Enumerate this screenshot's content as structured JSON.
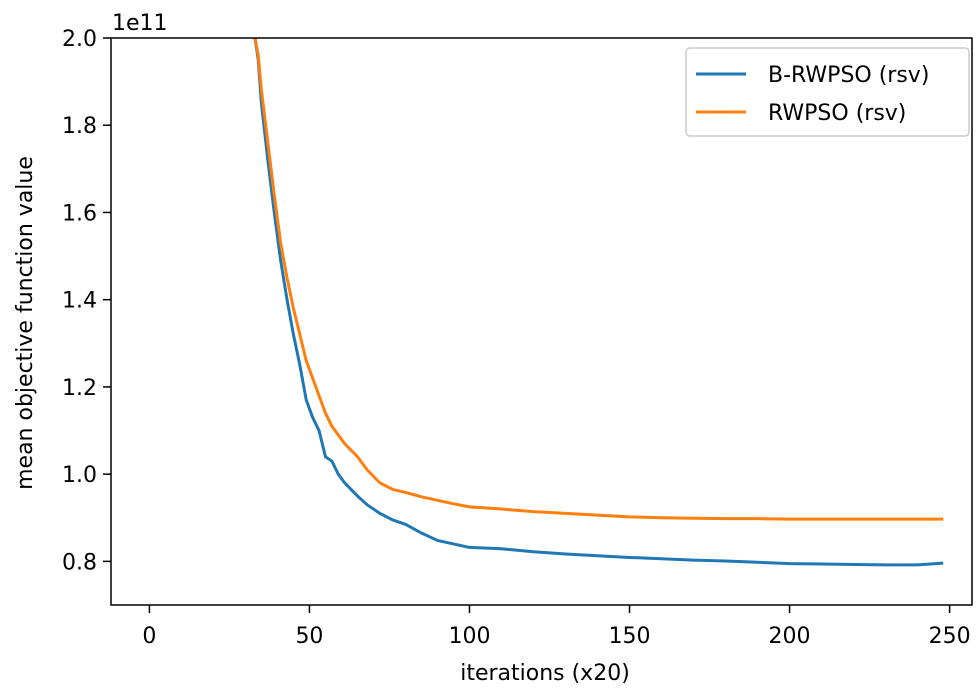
{
  "chart_data": {
    "type": "line",
    "title": "",
    "xlabel": "iterations (x20)",
    "ylabel": "mean objective function value",
    "y_scale_label": "1e11",
    "xlim": [
      -12,
      257
    ],
    "ylim": [
      0.7,
      2.0
    ],
    "x_ticks": [
      0,
      50,
      100,
      150,
      200,
      250
    ],
    "x_tick_labels": [
      "0",
      "50",
      "100",
      "150",
      "200",
      "250"
    ],
    "y_ticks": [
      0.8,
      1.0,
      1.2,
      1.4,
      1.6,
      1.8,
      2.0
    ],
    "y_tick_labels": [
      "0.8",
      "1.0",
      "1.2",
      "1.4",
      "1.6",
      "1.8",
      "2.0"
    ],
    "grid": false,
    "legend_position": "top-right",
    "series": [
      {
        "name": "B-RWPSO (rsv)",
        "color": "#1f77b4",
        "x": [
          33,
          34,
          35,
          37,
          39,
          41,
          43,
          45,
          47,
          49,
          51,
          53,
          55,
          57,
          59,
          61,
          63,
          65,
          68,
          72,
          76,
          80,
          85,
          90,
          95,
          100,
          110,
          120,
          130,
          140,
          150,
          160,
          170,
          180,
          190,
          200,
          210,
          220,
          230,
          240,
          248
        ],
        "values": [
          2.0,
          1.95,
          1.85,
          1.72,
          1.6,
          1.49,
          1.4,
          1.32,
          1.25,
          1.17,
          1.13,
          1.1,
          1.04,
          1.03,
          1.0,
          0.98,
          0.965,
          0.95,
          0.93,
          0.91,
          0.895,
          0.885,
          0.865,
          0.848,
          0.84,
          0.832,
          0.829,
          0.822,
          0.817,
          0.813,
          0.809,
          0.806,
          0.803,
          0.801,
          0.798,
          0.795,
          0.794,
          0.793,
          0.792,
          0.792,
          0.796
        ]
      },
      {
        "name": "RWPSO (rsv)",
        "color": "#ff7f0e",
        "x": [
          33,
          34,
          35,
          37,
          39,
          41,
          43,
          45,
          47,
          49,
          51,
          53,
          55,
          57,
          59,
          61,
          63,
          65,
          68,
          72,
          76,
          80,
          85,
          90,
          95,
          100,
          110,
          120,
          130,
          140,
          150,
          160,
          170,
          180,
          190,
          200,
          210,
          220,
          230,
          240,
          248
        ],
        "values": [
          2.0,
          1.96,
          1.88,
          1.76,
          1.64,
          1.53,
          1.45,
          1.38,
          1.32,
          1.26,
          1.22,
          1.18,
          1.14,
          1.11,
          1.09,
          1.07,
          1.055,
          1.04,
          1.01,
          0.98,
          0.965,
          0.958,
          0.948,
          0.94,
          0.932,
          0.925,
          0.92,
          0.914,
          0.91,
          0.906,
          0.902,
          0.9,
          0.899,
          0.898,
          0.898,
          0.897,
          0.897,
          0.897,
          0.897,
          0.897,
          0.897
        ]
      }
    ]
  }
}
